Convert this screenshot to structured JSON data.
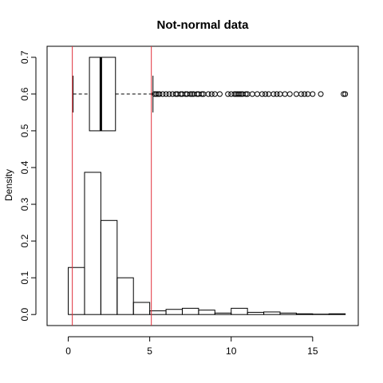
{
  "chart_data": {
    "type": "bar",
    "title": "Not-normal data",
    "xlabel": "",
    "ylabel": "Density",
    "xlim": [
      -1.3,
      17.8
    ],
    "ylim": [
      -0.03,
      0.73
    ],
    "xticks": [
      "0",
      "5",
      "10",
      "15"
    ],
    "yticks": [
      "0.0",
      "0.1",
      "0.2",
      "0.3",
      "0.4",
      "0.5",
      "0.6",
      "0.7"
    ],
    "grid": false,
    "bin_width": 1,
    "histogram": [
      {
        "x0": 0,
        "x1": 1,
        "density": 0.128
      },
      {
        "x0": 1,
        "x1": 2,
        "density": 0.387
      },
      {
        "x0": 2,
        "x1": 3,
        "density": 0.256
      },
      {
        "x0": 3,
        "x1": 4,
        "density": 0.1
      },
      {
        "x0": 4,
        "x1": 5,
        "density": 0.033
      },
      {
        "x0": 5,
        "x1": 6,
        "density": 0.01
      },
      {
        "x0": 6,
        "x1": 7,
        "density": 0.014
      },
      {
        "x0": 7,
        "x1": 8,
        "density": 0.017
      },
      {
        "x0": 8,
        "x1": 9,
        "density": 0.012
      },
      {
        "x0": 9,
        "x1": 10,
        "density": 0.004
      },
      {
        "x0": 10,
        "x1": 11,
        "density": 0.017
      },
      {
        "x0": 11,
        "x1": 12,
        "density": 0.006
      },
      {
        "x0": 12,
        "x1": 13,
        "density": 0.007
      },
      {
        "x0": 13,
        "x1": 14,
        "density": 0.004
      },
      {
        "x0": 14,
        "x1": 15,
        "density": 0.002
      },
      {
        "x0": 15,
        "x1": 16,
        "density": 0.001
      },
      {
        "x0": 16,
        "x1": 17,
        "density": 0.002
      }
    ],
    "boxplot": {
      "y_center": 0.6,
      "y_half_height": 0.1,
      "whisker_cap_half_height": 0.05,
      "whisker_low": 0.3,
      "q1": 1.3,
      "median": 2.0,
      "q3": 2.9,
      "whisker_high": 5.2,
      "outliers": [
        5.3,
        5.4,
        5.5,
        5.6,
        5.8,
        6.0,
        6.2,
        6.4,
        6.6,
        6.7,
        6.9,
        7.0,
        7.2,
        7.3,
        7.5,
        7.6,
        7.7,
        7.9,
        8.0,
        8.2,
        8.3,
        8.6,
        8.8,
        9.0,
        9.3,
        9.8,
        10.0,
        10.2,
        10.3,
        10.4,
        10.5,
        10.6,
        10.7,
        10.9,
        11.0,
        11.3,
        11.6,
        11.9,
        12.1,
        12.3,
        12.6,
        12.8,
        13.0,
        13.3,
        13.6,
        14.0,
        14.3,
        14.5,
        14.7,
        15.0,
        15.5,
        16.9,
        17.0
      ]
    },
    "vlines": [
      {
        "x": 0.25,
        "color": "#e0303a"
      },
      {
        "x": 5.1,
        "color": "#e0303a"
      }
    ],
    "colors": {
      "box": "#000000",
      "bars": "#000000",
      "vline": "#e0303a"
    }
  }
}
